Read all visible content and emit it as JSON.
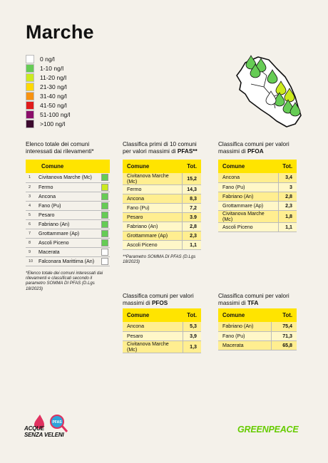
{
  "title": "Marche",
  "colors": {
    "background": "#f4f1ea",
    "header_yellow": "#ffe400",
    "row_odd": "#ffee90",
    "row_even": "#fff7c8",
    "greenpeace": "#66cc00"
  },
  "legend": [
    {
      "label": "0 ng/l",
      "color": "#ffffff"
    },
    {
      "label": "1-10 ng/l",
      "color": "#66cc55"
    },
    {
      "label": "11-20 ng/l",
      "color": "#ccea1f"
    },
    {
      "label": "21-30 ng/l",
      "color": "#ffd800"
    },
    {
      "label": "31-40 ng/l",
      "color": "#f7920f"
    },
    {
      "label": "41-50 ng/l",
      "color": "#e01b1b"
    },
    {
      "label": "51-100 ng/l",
      "color": "#8b0e6a"
    },
    {
      "label": ">100 ng/l",
      "color": "#3c0a2e"
    }
  ],
  "map": {
    "icon": "marche-region-map-with-drop-markers"
  },
  "comuni_list": {
    "title_line1": "Elenco totale dei comuni",
    "title_line2": "interessati dai rilevamenti*",
    "header": "Comune",
    "rows": [
      {
        "rank": "1",
        "name": "Civitanova Marche (Mc)",
        "color": "#66cc55"
      },
      {
        "rank": "2",
        "name": "Fermo",
        "color": "#ccea1f"
      },
      {
        "rank": "3",
        "name": "Ancona",
        "color": "#66cc55"
      },
      {
        "rank": "4",
        "name": "Fano (Pu)",
        "color": "#66cc55"
      },
      {
        "rank": "5",
        "name": "Pesaro",
        "color": "#66cc55"
      },
      {
        "rank": "6",
        "name": "Fabriano (An)",
        "color": "#66cc55"
      },
      {
        "rank": "7",
        "name": "Grottammare (Ap)",
        "color": "#66cc55"
      },
      {
        "rank": "8",
        "name": "Ascoli Piceno",
        "color": "#66cc55"
      },
      {
        "rank": "9",
        "name": "Macerata",
        "color": "#ffffff"
      },
      {
        "rank": "10",
        "name": "Falconara Marittima (An)",
        "color": "#ffffff"
      }
    ],
    "note": "*Elenco totale dei comuni interessati dai rilevamenti e classificati secondo il parametro SOMMA DI PFAS (D.Lgs 18/2023)"
  },
  "pfas": {
    "title_line1": "Classifica primi di 10 comuni",
    "title_line2_prefix": "per valori massimi di ",
    "title_bold": "PFAS**",
    "header_comune": "Comune",
    "header_tot": "Tot.",
    "rows": [
      {
        "name": "Civitanova Marche (Mc)",
        "value": "15,2"
      },
      {
        "name": "Fermo",
        "value": "14,3"
      },
      {
        "name": "Ancona",
        "value": "8,3"
      },
      {
        "name": "Fano (Pu)",
        "value": "7,2"
      },
      {
        "name": "Pesaro",
        "value": "3.9"
      },
      {
        "name": "Fabriano (An)",
        "value": "2,8"
      },
      {
        "name": "Grottammare (Ap)",
        "value": "2,3"
      },
      {
        "name": "Ascoli Piceno",
        "value": "1,1"
      }
    ],
    "note": "**Parametro SOMMA DI PFAS (D.Lgs 18/2023)"
  },
  "pfoa": {
    "title_line1": "Classifica comuni per valori",
    "title_line2_prefix": "massimi di ",
    "title_bold": "PFOA",
    "header_comune": "Comune",
    "header_tot": "Tot.",
    "rows": [
      {
        "name": "Ancona",
        "value": "3,4"
      },
      {
        "name": "Fano (Pu)",
        "value": "3"
      },
      {
        "name": "Fabriano (An)",
        "value": "2,8"
      },
      {
        "name": "Grottammare (Ap)",
        "value": "2,3"
      },
      {
        "name": "Civitanova Marche (Mc)",
        "value": "1,8"
      },
      {
        "name": "Ascoli Piceno",
        "value": "1,1"
      }
    ]
  },
  "pfos": {
    "title_line1": "Classifica comuni per valori",
    "title_line2_prefix": "massimi di ",
    "title_bold": "PFOS",
    "header_comune": "Comune",
    "header_tot": "Tot.",
    "rows": [
      {
        "name": "Ancona",
        "value": "5,3"
      },
      {
        "name": "Pesaro",
        "value": "3,9"
      },
      {
        "name": "Civitanova Marche (Mc)",
        "value": "1,3"
      }
    ]
  },
  "tfa": {
    "title_line1": "Classifica comuni per valori",
    "title_line2_prefix": "massimi di ",
    "title_bold": "TFA",
    "header_comune": "Comune",
    "header_tot": "Tot.",
    "rows": [
      {
        "name": "Fabriano (An)",
        "value": "75,4"
      },
      {
        "name": "Fano (Pu)",
        "value": "71,3"
      },
      {
        "name": "Macerata",
        "value": "65,8"
      }
    ]
  },
  "logos": {
    "campaign_line1": "ACQUE",
    "campaign_line2": "SENZA VELENI",
    "campaign_badge": "PFAS",
    "greenpeace": "GREENPEACE"
  }
}
